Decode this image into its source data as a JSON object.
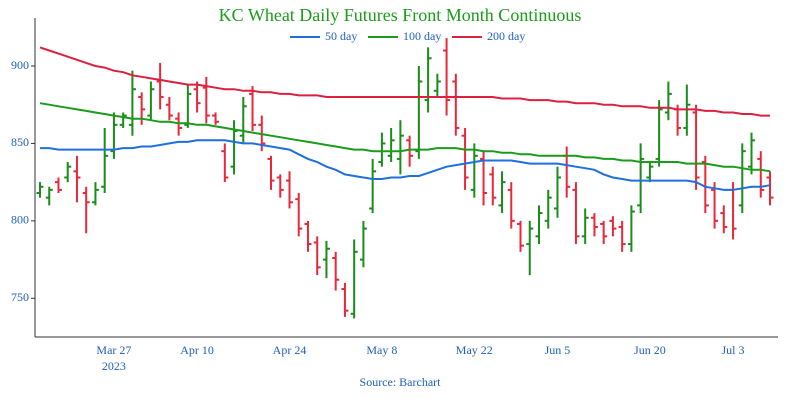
{
  "chart_data": {
    "type": "ohlc",
    "title": "KC Wheat Daily Futures Front Month Continuous",
    "source": "Source: Barchart",
    "categories": [
      null,
      null,
      null,
      null,
      null,
      null,
      null,
      null,
      "Mar 27",
      null,
      null,
      null,
      null,
      null,
      null,
      null,
      null,
      "Apr 10",
      null,
      null,
      null,
      null,
      null,
      null,
      null,
      null,
      null,
      "Apr 24",
      null,
      null,
      null,
      null,
      null,
      null,
      null,
      null,
      null,
      "May 8",
      null,
      null,
      null,
      null,
      null,
      null,
      null,
      null,
      null,
      "May 22",
      null,
      null,
      null,
      null,
      null,
      null,
      null,
      null,
      "Jun 5",
      null,
      null,
      null,
      null,
      null,
      null,
      null,
      null,
      null,
      "Jun 20",
      null,
      null,
      null,
      null,
      null,
      null,
      null,
      null,
      "Jul 3",
      null,
      null,
      null,
      null
    ],
    "year_label": "2023",
    "ohlc": {
      "up_color": "#1a8c1a",
      "down_color": "#e8283a",
      "open": [
        818,
        815,
        825,
        828,
        832,
        818,
        812,
        822,
        845,
        862,
        862,
        880,
        868,
        890,
        875,
        866,
        862,
        885,
        886,
        868,
        845,
        835,
        855,
        882,
        862,
        840,
        828,
        826,
        814,
        798,
        786,
        775,
        776,
        756,
        740,
        775,
        808,
        838,
        842,
        840,
        852,
        845,
        878,
        884,
        910,
        890,
        855,
        820,
        840,
        830,
        810,
        820,
        798,
        785,
        790,
        800,
        808,
        842,
        820,
        790,
        802,
        798,
        800,
        796,
        785,
        810,
        828,
        840,
        870,
        872,
        860,
        870,
        838,
        820,
        805,
        820,
        810,
        835,
        840,
        828
      ],
      "high": [
        825,
        822,
        828,
        838,
        842,
        822,
        825,
        860,
        870,
        870,
        897,
        883,
        890,
        902,
        880,
        870,
        888,
        890,
        893,
        870,
        850,
        865,
        880,
        887,
        868,
        842,
        830,
        832,
        818,
        800,
        790,
        787,
        780,
        760,
        788,
        800,
        840,
        857,
        860,
        865,
        855,
        900,
        912,
        895,
        918,
        895,
        860,
        850,
        845,
        835,
        832,
        825,
        800,
        800,
        810,
        820,
        835,
        848,
        825,
        808,
        805,
        800,
        803,
        800,
        810,
        850,
        838,
        878,
        890,
        875,
        888,
        875,
        842,
        825,
        810,
        825,
        850,
        857,
        845,
        832
      ],
      "low": [
        815,
        810,
        818,
        825,
        812,
        792,
        810,
        818,
        840,
        860,
        855,
        862,
        865,
        872,
        865,
        855,
        860,
        870,
        863,
        862,
        825,
        830,
        850,
        858,
        845,
        820,
        815,
        808,
        790,
        780,
        765,
        763,
        755,
        738,
        737,
        770,
        805,
        835,
        838,
        830,
        835,
        840,
        870,
        880,
        868,
        855,
        820,
        815,
        810,
        810,
        805,
        795,
        780,
        765,
        785,
        795,
        802,
        815,
        785,
        785,
        790,
        785,
        790,
        780,
        780,
        805,
        825,
        835,
        865,
        855,
        855,
        820,
        805,
        795,
        792,
        788,
        805,
        830,
        815,
        810
      ],
      "close": [
        822,
        820,
        820,
        835,
        828,
        812,
        820,
        842,
        862,
        868,
        885,
        872,
        885,
        880,
        868,
        860,
        882,
        876,
        868,
        864,
        828,
        858,
        874,
        862,
        850,
        826,
        820,
        812,
        795,
        785,
        770,
        782,
        762,
        742,
        780,
        795,
        832,
        850,
        852,
        855,
        842,
        890,
        905,
        890,
        878,
        860,
        828,
        842,
        818,
        815,
        825,
        800,
        784,
        795,
        805,
        815,
        828,
        822,
        790,
        802,
        796,
        790,
        795,
        785,
        806,
        840,
        835,
        872,
        882,
        860,
        875,
        828,
        810,
        800,
        796,
        795,
        845,
        852,
        820,
        815
      ]
    },
    "lines": [
      {
        "name": "50 day",
        "color": "#1f6fdc",
        "values": [
          847,
          847,
          846,
          846,
          846,
          846,
          846,
          846,
          846,
          847,
          847,
          848,
          848,
          849,
          850,
          851,
          851,
          852,
          852,
          852,
          852,
          851,
          850,
          850,
          849,
          848,
          847,
          846,
          843,
          840,
          838,
          835,
          833,
          830,
          829,
          828,
          827,
          827,
          828,
          828,
          829,
          829,
          831,
          833,
          835,
          836,
          837,
          838,
          839,
          839,
          839,
          839,
          838,
          837,
          837,
          837,
          837,
          836,
          835,
          834,
          833,
          830,
          828,
          827,
          826,
          826,
          826,
          826,
          826,
          826,
          826,
          825,
          822,
          821,
          820,
          820,
          821,
          822,
          822,
          823
        ]
      },
      {
        "name": "100 day",
        "color": "#1a9c1a",
        "values": [
          876,
          875,
          874,
          873,
          872,
          871,
          870,
          869,
          868,
          867,
          866,
          866,
          865,
          864,
          864,
          863,
          863,
          862,
          862,
          861,
          860,
          859,
          858,
          857,
          856,
          855,
          854,
          853,
          852,
          851,
          850,
          849,
          848,
          847,
          846,
          846,
          845,
          845,
          845,
          845,
          846,
          846,
          846,
          847,
          847,
          847,
          846,
          846,
          845,
          845,
          844,
          844,
          843,
          843,
          842,
          842,
          842,
          842,
          842,
          841,
          841,
          840,
          840,
          839,
          839,
          838,
          838,
          838,
          838,
          838,
          837,
          837,
          837,
          836,
          835,
          835,
          834,
          833,
          833,
          832
        ]
      },
      {
        "name": "200 day",
        "color": "#dc2040",
        "values": [
          912,
          910,
          908,
          906,
          904,
          902,
          900,
          899,
          897,
          896,
          894,
          893,
          892,
          891,
          890,
          889,
          888,
          888,
          887,
          886,
          885,
          885,
          884,
          884,
          883,
          883,
          882,
          882,
          881,
          881,
          881,
          880,
          880,
          880,
          880,
          880,
          880,
          880,
          880,
          880,
          880,
          880,
          880,
          880,
          880,
          880,
          880,
          880,
          880,
          880,
          879,
          879,
          879,
          878,
          878,
          878,
          877,
          877,
          876,
          876,
          876,
          875,
          875,
          874,
          874,
          874,
          873,
          873,
          873,
          872,
          872,
          872,
          871,
          871,
          870,
          870,
          869,
          869,
          868,
          868
        ]
      }
    ],
    "ylim": [
      725,
      931
    ],
    "yticks": [
      750,
      800,
      850,
      900
    ],
    "legend": "top"
  }
}
